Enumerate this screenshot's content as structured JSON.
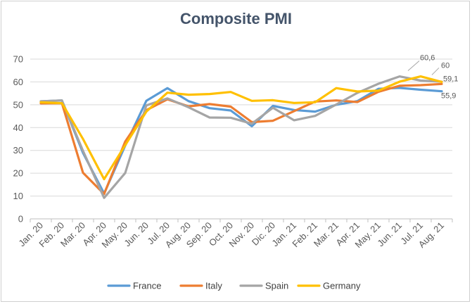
{
  "chart_data": {
    "type": "line",
    "title": "Composite PMI",
    "xlabel": "",
    "ylabel": "",
    "ylim": [
      0,
      70
    ],
    "yticks": [
      0,
      10,
      20,
      30,
      40,
      50,
      60,
      70
    ],
    "grid": true,
    "legend_position": "bottom",
    "categories": [
      "Jan. 20",
      "Feb. 20",
      "Mar. 20",
      "Apr. 20",
      "May. 20",
      "Jun. 20",
      "Jul. 20",
      "Aug. 20",
      "Sep. 20",
      "Oct. 20",
      "Nov. 20",
      "Dic. 20",
      "Jan. 21",
      "Feb. 21",
      "Mar. 21",
      "Apr. 21",
      "May. 21",
      "Jun. 21",
      "Jul. 21",
      "Aug. 21"
    ],
    "series": [
      {
        "name": "France",
        "color": "#5b9bd5",
        "values": [
          51.5,
          51.9,
          28.9,
          11.1,
          32.1,
          51.7,
          57.3,
          51.6,
          48.5,
          47.5,
          40.6,
          49.5,
          47.7,
          47.0,
          50.0,
          51.6,
          57.0,
          57.4,
          56.6,
          55.9
        ]
      },
      {
        "name": "Italy",
        "color": "#ed7d31",
        "values": [
          50.6,
          50.7,
          20.2,
          10.9,
          33.9,
          47.6,
          52.4,
          49.3,
          50.3,
          49.2,
          42.4,
          43.0,
          47.2,
          51.4,
          51.9,
          51.2,
          55.7,
          58.3,
          58.6,
          59.1
        ]
      },
      {
        "name": "Spain",
        "color": "#a5a5a5",
        "values": [
          51.5,
          51.9,
          29.8,
          9.2,
          20.1,
          49.7,
          52.8,
          48.9,
          44.4,
          44.3,
          41.7,
          48.7,
          43.2,
          45.1,
          50.1,
          55.2,
          59.2,
          62.4,
          60.6,
          60.1
        ]
      },
      {
        "name": "Germany",
        "color": "#ffc000",
        "values": [
          51.1,
          50.7,
          35.0,
          17.4,
          32.3,
          47.0,
          55.3,
          54.4,
          54.7,
          55.6,
          51.7,
          52.0,
          50.8,
          51.1,
          57.3,
          55.8,
          56.2,
          60.1,
          62.4,
          60.0
        ]
      }
    ],
    "annotations": [
      {
        "text": "60,6",
        "series": "Spain",
        "x": "Jul. 21",
        "value": 60.6
      },
      {
        "text": "60",
        "series": "Germany",
        "x": "Aug. 21",
        "value": 60
      },
      {
        "text": "59,1",
        "series": "Italy",
        "x": "Aug. 21",
        "value": 59.1
      },
      {
        "text": "55,9",
        "series": "France",
        "x": "Aug. 21",
        "value": 55.9
      }
    ]
  }
}
